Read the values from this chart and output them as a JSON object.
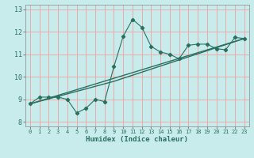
{
  "xlabel": "Humidex (Indice chaleur)",
  "ylabel": "",
  "bg_color": "#c8ecec",
  "grid_color": "#f0a0a0",
  "line_color": "#2a7060",
  "xlim": [
    -0.5,
    23.5
  ],
  "ylim": [
    7.8,
    13.2
  ],
  "xticks": [
    0,
    1,
    2,
    3,
    4,
    5,
    6,
    7,
    8,
    9,
    10,
    11,
    12,
    13,
    14,
    15,
    16,
    17,
    18,
    19,
    20,
    21,
    22,
    23
  ],
  "yticks": [
    8,
    9,
    10,
    11,
    12,
    13
  ],
  "series1_x": [
    0,
    1,
    2,
    3,
    4,
    5,
    6,
    7,
    8,
    9,
    10,
    11,
    12,
    13,
    14,
    15,
    16,
    17,
    18,
    19,
    20,
    21,
    22,
    23
  ],
  "series1_y": [
    8.8,
    9.1,
    9.1,
    9.1,
    9.0,
    8.4,
    8.6,
    9.0,
    8.9,
    10.45,
    11.8,
    12.55,
    12.2,
    11.35,
    11.1,
    11.0,
    10.8,
    11.4,
    11.45,
    11.45,
    11.25,
    11.2,
    11.75,
    11.7
  ],
  "series2_x": [
    0,
    23
  ],
  "series2_y": [
    8.8,
    11.7
  ],
  "series3_x": [
    0,
    9,
    23
  ],
  "series3_y": [
    8.8,
    9.8,
    11.7
  ]
}
